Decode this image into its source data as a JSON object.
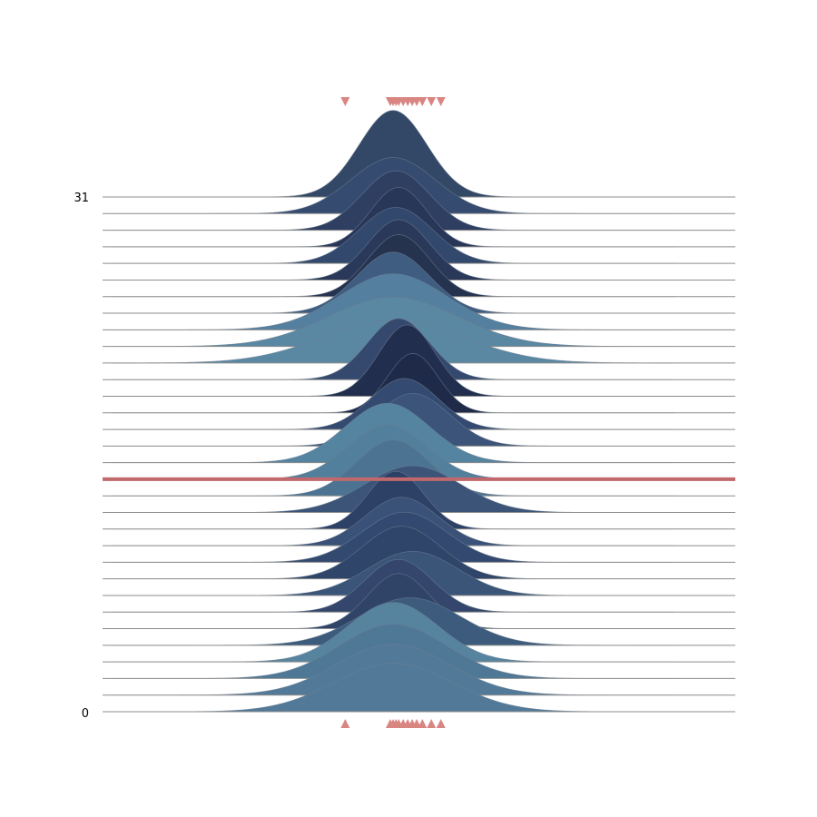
{
  "chart_data": {
    "type": "ridgeline",
    "title": "",
    "xlabel": "",
    "ylabel": "",
    "y_tick_labels": [
      "0",
      "31"
    ],
    "ylim": [
      0,
      31
    ],
    "xlim": [
      -5,
      5
    ],
    "grid": false,
    "highlight_row": 14,
    "highlight_color": "#c0686c",
    "marker_color": "#d98683",
    "baseline_color": "#8c8c8c",
    "series": [
      {
        "row": 0,
        "mean": 0.0,
        "sd": 1.05,
        "peak": 2.85,
        "color": "#527a98"
      },
      {
        "row": 1,
        "mean": 0.0,
        "sd": 1.0,
        "peak": 3.0,
        "color": "#527a98"
      },
      {
        "row": 2,
        "mean": 0.0,
        "sd": 0.95,
        "peak": 3.2,
        "color": "#4f7896"
      },
      {
        "row": 3,
        "mean": 0.0,
        "sd": 0.8,
        "peak": 3.5,
        "color": "#56849f"
      },
      {
        "row": 4,
        "mean": 0.3,
        "sd": 0.9,
        "peak": 2.8,
        "color": "#3d5c7d"
      },
      {
        "row": 5,
        "mean": 0.1,
        "sd": 0.55,
        "peak": 3.25,
        "color": "#2f4467"
      },
      {
        "row": 6,
        "mean": 0.1,
        "sd": 0.6,
        "peak": 3.1,
        "color": "#34466b"
      },
      {
        "row": 7,
        "mean": 0.35,
        "sd": 0.8,
        "peak": 2.6,
        "color": "#3b5579"
      },
      {
        "row": 8,
        "mean": 0.15,
        "sd": 0.7,
        "peak": 3.1,
        "color": "#2f4569"
      },
      {
        "row": 9,
        "mean": 0.2,
        "sd": 0.75,
        "peak": 2.95,
        "color": "#34496f"
      },
      {
        "row": 10,
        "mean": 0.15,
        "sd": 0.65,
        "peak": 2.85,
        "color": "#3a5277"
      },
      {
        "row": 11,
        "mean": 0.05,
        "sd": 0.5,
        "peak": 3.4,
        "color": "#2d4066"
      },
      {
        "row": 12,
        "mean": 0.35,
        "sd": 0.85,
        "peak": 2.75,
        "color": "#3c5478"
      },
      {
        "row": 13,
        "mean": 0.0,
        "sd": 0.65,
        "peak": 3.3,
        "color": "#4c7492"
      },
      {
        "row": 14,
        "mean": -0.1,
        "sd": 0.7,
        "peak": 3.2,
        "color": "#527f9b"
      },
      {
        "row": 15,
        "mean": -0.1,
        "sd": 0.75,
        "peak": 3.5,
        "color": "#5584a0"
      },
      {
        "row": 16,
        "mean": 0.35,
        "sd": 0.65,
        "peak": 3.1,
        "color": "#3c5479"
      },
      {
        "row": 17,
        "mean": 0.2,
        "sd": 0.6,
        "peak": 3.0,
        "color": "#344a70"
      },
      {
        "row": 18,
        "mean": 0.35,
        "sd": 0.45,
        "peak": 3.5,
        "color": "#1f2a48"
      },
      {
        "row": 19,
        "mean": 0.25,
        "sd": 0.5,
        "peak": 4.2,
        "color": "#222e4d"
      },
      {
        "row": 20,
        "mean": 0.1,
        "sd": 0.55,
        "peak": 3.6,
        "color": "#35486e"
      },
      {
        "row": 21,
        "mean": 0.0,
        "sd": 1.25,
        "peak": 2.5,
        "color": "#5a88a3"
      },
      {
        "row": 22,
        "mean": 0.0,
        "sd": 1.15,
        "peak": 2.9,
        "color": "#5a87a2"
      },
      {
        "row": 23,
        "mean": 0.0,
        "sd": 0.95,
        "peak": 3.3,
        "color": "#557f9e"
      },
      {
        "row": 24,
        "mean": 0.0,
        "sd": 0.65,
        "peak": 3.6,
        "color": "#3f5d80"
      },
      {
        "row": 25,
        "mean": 0.1,
        "sd": 0.55,
        "peak": 3.65,
        "color": "#26334f"
      },
      {
        "row": 26,
        "mean": 0.1,
        "sd": 0.55,
        "peak": 3.55,
        "color": "#2a3959"
      },
      {
        "row": 27,
        "mean": 0.05,
        "sd": 0.65,
        "peak": 3.3,
        "color": "#33486d"
      },
      {
        "row": 28,
        "mean": 0.1,
        "sd": 0.5,
        "peak": 3.5,
        "color": "#283658"
      },
      {
        "row": 29,
        "mean": 0.05,
        "sd": 0.6,
        "peak": 3.5,
        "color": "#2e3f62"
      },
      {
        "row": 30,
        "mean": 0.0,
        "sd": 0.75,
        "peak": 3.3,
        "color": "#354c70"
      },
      {
        "row": 31,
        "mean": 0.0,
        "sd": 0.6,
        "peak": 5.1,
        "color": "#334766"
      }
    ],
    "markers": [
      -0.85,
      -0.05,
      0.0,
      0.05,
      0.1,
      0.18,
      0.26,
      0.34,
      0.42,
      0.52,
      0.68,
      0.85
    ]
  }
}
